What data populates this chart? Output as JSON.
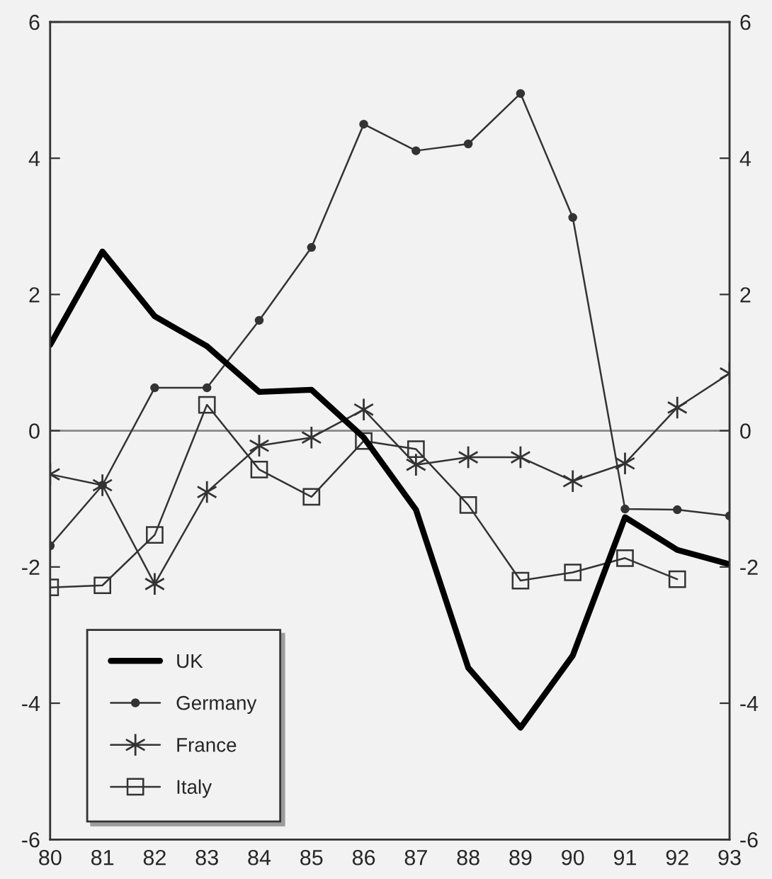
{
  "chart_data": {
    "type": "line",
    "x": [
      80,
      81,
      82,
      83,
      84,
      85,
      86,
      87,
      88,
      89,
      90,
      91,
      92,
      93
    ],
    "series": [
      {
        "name": "UK",
        "color": "#000000",
        "marker": "none",
        "values": [
          1.26,
          2.63,
          1.68,
          1.24,
          0.57,
          0.6,
          -0.1,
          -1.16,
          -3.48,
          -4.36,
          -3.3,
          -1.27,
          -1.75,
          -1.96
        ]
      },
      {
        "name": "Germany",
        "color": "#333333",
        "marker": "circle",
        "values": [
          -1.69,
          -0.8,
          0.63,
          0.63,
          1.62,
          2.69,
          4.5,
          4.11,
          4.21,
          4.95,
          3.13,
          -1.15,
          -1.16,
          -1.25
        ]
      },
      {
        "name": "France",
        "color": "#333333",
        "marker": "cross",
        "values": [
          -0.64,
          -0.8,
          -2.25,
          -0.9,
          -0.22,
          -0.1,
          0.31,
          -0.5,
          -0.39,
          -0.39,
          -0.74,
          -0.48,
          0.34,
          0.84
        ]
      },
      {
        "name": "Italy",
        "color": "#333333",
        "marker": "square",
        "values": [
          -2.3,
          -2.27,
          -1.53,
          0.38,
          -0.57,
          -0.97,
          -0.15,
          -0.27,
          -1.09,
          -2.2,
          -2.08,
          -1.87,
          -2.18,
          null
        ]
      }
    ],
    "xlim": [
      80,
      93
    ],
    "xticks": [
      80,
      81,
      82,
      83,
      84,
      85,
      86,
      87,
      88,
      89,
      90,
      91,
      92,
      93
    ],
    "ylim": [
      -6,
      6
    ],
    "yticks": [
      -6,
      -4,
      -2,
      0,
      2,
      4,
      6
    ],
    "y2lim": [
      -6,
      6
    ],
    "y2ticks": [
      -6,
      -4,
      -2,
      0,
      2,
      4,
      6
    ],
    "ref_lines": [
      {
        "axis": "y",
        "value": 0,
        "color": "#888888"
      }
    ],
    "grid": false,
    "legend": "bottom left",
    "line_style": "solid"
  }
}
